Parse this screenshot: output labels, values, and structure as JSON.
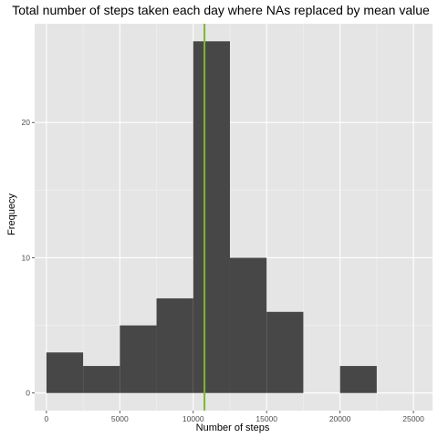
{
  "chart_data": {
    "type": "bar",
    "title": "Total number of steps taken each day where NAs replaced by mean value",
    "xlabel": "Number of steps",
    "ylabel": "Frequecy",
    "bin_width": 2500,
    "bins": [
      {
        "start": 0,
        "end": 2500,
        "count": 3
      },
      {
        "start": 2500,
        "end": 5000,
        "count": 2
      },
      {
        "start": 5000,
        "end": 7500,
        "count": 5
      },
      {
        "start": 7500,
        "end": 10000,
        "count": 7
      },
      {
        "start": 10000,
        "end": 12500,
        "count": 26
      },
      {
        "start": 12500,
        "end": 15000,
        "count": 10
      },
      {
        "start": 15000,
        "end": 17500,
        "count": 6
      },
      {
        "start": 17500,
        "end": 20000,
        "count": 0
      },
      {
        "start": 20000,
        "end": 22500,
        "count": 2
      }
    ],
    "mean_line": {
      "x": 10766,
      "color": "#7cb82f"
    },
    "xlim": [
      -800,
      26300
    ],
    "ylim": [
      -1.3,
      27.3
    ],
    "x_ticks": [
      "0",
      "5000",
      "10000",
      "15000",
      "20000",
      "25000"
    ],
    "y_ticks": [
      "0",
      "10",
      "20"
    ],
    "grid": true,
    "colors": {
      "bar_fill": "#474747",
      "panel_bg": "#e5e5e5",
      "grid_major": "#ffffff",
      "grid_minor": "#f2f2f2"
    }
  }
}
